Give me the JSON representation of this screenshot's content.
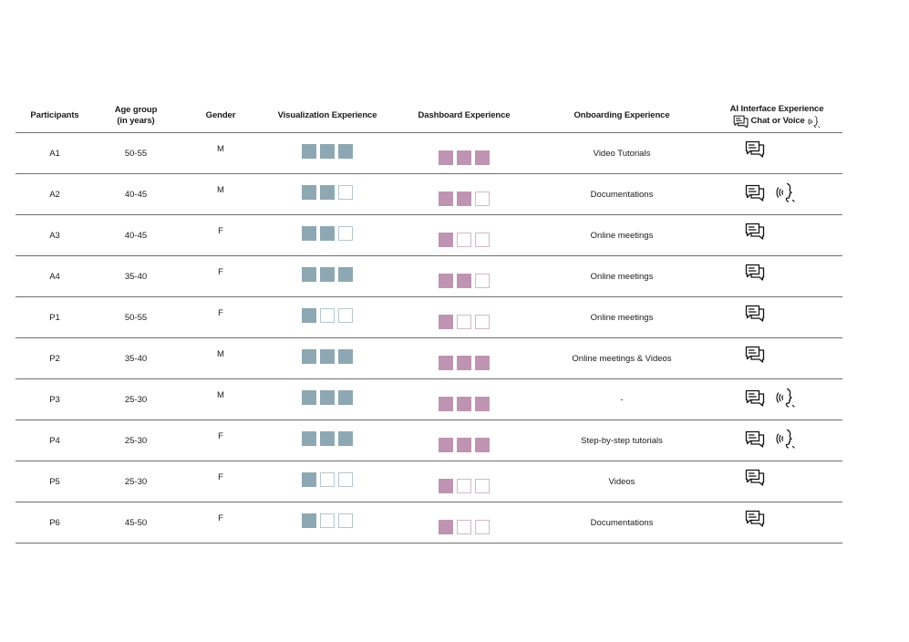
{
  "headers": {
    "participants": "Participants",
    "age_line1": "Age group",
    "age_line2": "(in years)",
    "gender": "Gender",
    "visualization": "Visualization Experience",
    "dashboard": "Dashboard Experience",
    "onboarding": "Onboarding Experience",
    "ai_line1": "AI Interface Experience",
    "ai_line2": "Chat or Voice"
  },
  "colors": {
    "visualization": "#8ea8b3",
    "dashboard": "#bf94b2"
  },
  "rows": [
    {
      "id": "A1",
      "age": "50-55",
      "gender": "M",
      "vis": 3,
      "dash": 3,
      "onboarding": "Video Tutorials",
      "chat": true,
      "voice": false
    },
    {
      "id": "A2",
      "age": "40-45",
      "gender": "M",
      "vis": 2,
      "dash": 2,
      "onboarding": "Documentations",
      "chat": true,
      "voice": true
    },
    {
      "id": "A3",
      "age": "40-45",
      "gender": "F",
      "vis": 2,
      "dash": 1,
      "onboarding": "Online meetings",
      "chat": true,
      "voice": false
    },
    {
      "id": "A4",
      "age": "35-40",
      "gender": "F",
      "vis": 3,
      "dash": 2,
      "onboarding": "Online meetings",
      "chat": true,
      "voice": false
    },
    {
      "id": "P1",
      "age": "50-55",
      "gender": "F",
      "vis": 1,
      "dash": 1,
      "onboarding": "Online meetings",
      "chat": true,
      "voice": false
    },
    {
      "id": "P2",
      "age": "35-40",
      "gender": "M",
      "vis": 3,
      "dash": 3,
      "onboarding": "Online meetings & Videos",
      "chat": true,
      "voice": false
    },
    {
      "id": "P3",
      "age": "25-30",
      "gender": "M",
      "vis": 3,
      "dash": 3,
      "onboarding": "-",
      "chat": true,
      "voice": true
    },
    {
      "id": "P4",
      "age": "25-30",
      "gender": "F",
      "vis": 3,
      "dash": 3,
      "onboarding": "Step-by-step tutorials",
      "chat": true,
      "voice": true
    },
    {
      "id": "P5",
      "age": "25-30",
      "gender": "F",
      "vis": 1,
      "dash": 1,
      "onboarding": "Videos",
      "chat": true,
      "voice": false
    },
    {
      "id": "P6",
      "age": "45-50",
      "gender": "F",
      "vis": 1,
      "dash": 1,
      "onboarding": "Documentations",
      "chat": true,
      "voice": false
    }
  ]
}
